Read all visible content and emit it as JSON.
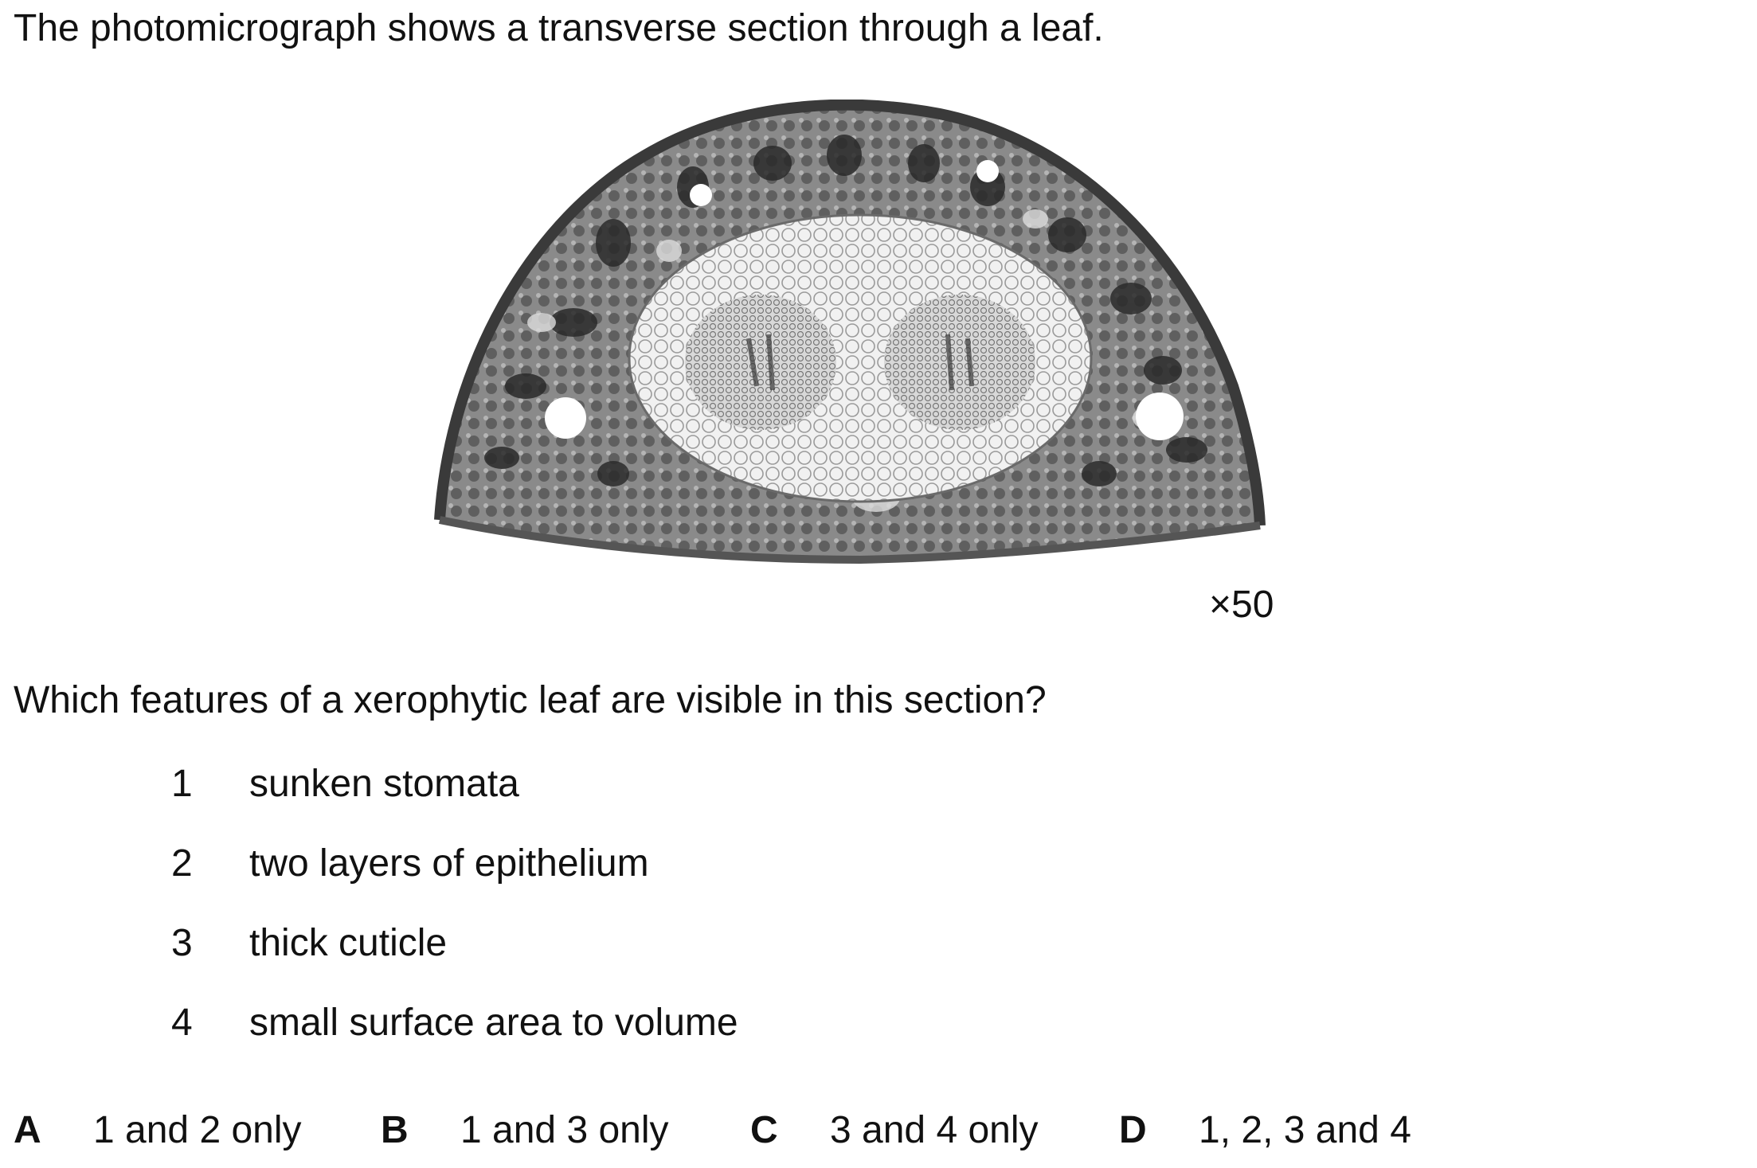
{
  "intro_text": "The photomicrograph shows a transverse section through a leaf.",
  "figure": {
    "magnification": "×50"
  },
  "question_text": "Which features of a xerophytic leaf are visible in this section?",
  "statements": [
    {
      "number": "1",
      "text": "sunken stomata"
    },
    {
      "number": "2",
      "text": "two layers of epithelium"
    },
    {
      "number": "3",
      "text": "thick cuticle"
    },
    {
      "number": "4",
      "text": "small surface area to volume"
    }
  ],
  "options": [
    {
      "letter": "A",
      "text": "1 and 2 only"
    },
    {
      "letter": "B",
      "text": "1 and 3 only"
    },
    {
      "letter": "C",
      "text": "3 and 4 only"
    },
    {
      "letter": "D",
      "text": "1, 2, 3 and 4"
    }
  ]
}
